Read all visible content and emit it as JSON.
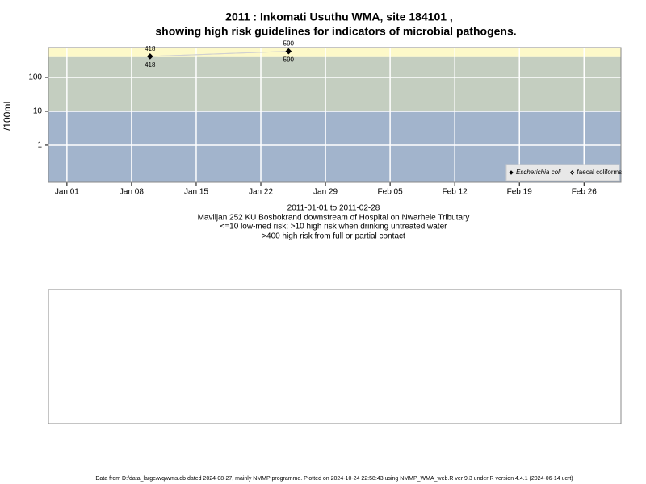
{
  "chart_data": {
    "type": "line",
    "title": "2011 : Inkomati Usuthu WMA, site 184101 ,",
    "subtitle": "showing high risk guidelines for indicators of microbial pathogens.",
    "y_label": "/100mL",
    "notes": [
      "2011-01-01 to 2011-02-28",
      "Maviljan 252 KU Bosbokrand downstream of Hospital on Nwarhele Tributary",
      "<=10 low-med risk; >10 high risk when drinking untreated water",
      ">400 high risk from full or partial contact"
    ],
    "footer": "Data from D:/data_large/wq/wms.db dated 2024-08-27, mainly NMMP programme. Plotted on 2024-10-24 22:58:43 using NMMP_WMA_web.R ver 9.3 under R version 4.4.1 (2024-06-14 ucrt)",
    "x": [
      "2011-01-10",
      "2011-01-25"
    ],
    "series": [
      {
        "name": "Escherichia coli",
        "color": "#000000",
        "marker": "filled",
        "values": [
          418,
          590
        ]
      },
      {
        "name": "faecal coliforms",
        "color": "#000000",
        "marker": "open",
        "values": [
          418,
          590
        ]
      }
    ],
    "line_color": "#d0d0d0",
    "xlim": [
      "2010-12-30",
      "2011-03-02"
    ],
    "xticks": [
      {
        "value": "2011-01-01",
        "label": "Jan 01"
      },
      {
        "value": "2011-01-08",
        "label": "Jan 08"
      },
      {
        "value": "2011-01-15",
        "label": "Jan 15"
      },
      {
        "value": "2011-01-22",
        "label": "Jan 22"
      },
      {
        "value": "2011-01-29",
        "label": "Jan 29"
      },
      {
        "value": "2011-02-05",
        "label": "Feb 05"
      },
      {
        "value": "2011-02-12",
        "label": "Feb 12"
      },
      {
        "value": "2011-02-19",
        "label": "Feb 19"
      },
      {
        "value": "2011-02-26",
        "label": "Feb 26"
      }
    ],
    "ylim": [
      0.08,
      760
    ],
    "yticks": [
      1,
      10,
      100
    ],
    "log_y": true,
    "grid": true,
    "thresholds": [
      10,
      400
    ],
    "band_colors": [
      "#a2b4cc",
      "#c4cec0",
      "#fdf9c9"
    ],
    "legend": "bottom-right"
  }
}
